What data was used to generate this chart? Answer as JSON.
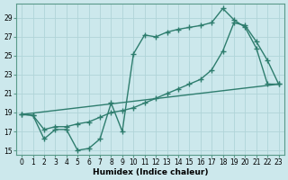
{
  "bg_color": "#cce8ec",
  "grid_color": "#b0d4d8",
  "line_color": "#2e7d6e",
  "line_width": 1.0,
  "marker": "+",
  "marker_size": 4.0,
  "xlim": [
    -0.5,
    23.5
  ],
  "ylim": [
    14.5,
    30.5
  ],
  "xlabel": "Humidex (Indice chaleur)",
  "xlabel_fontsize": 6.5,
  "xticks": [
    0,
    1,
    2,
    3,
    4,
    5,
    6,
    7,
    8,
    9,
    10,
    11,
    12,
    13,
    14,
    15,
    16,
    17,
    18,
    19,
    20,
    21,
    22,
    23
  ],
  "yticks": [
    15,
    17,
    19,
    21,
    23,
    25,
    27,
    29
  ],
  "tick_fontsize": 5.5,
  "series1_x": [
    0,
    1,
    2,
    3,
    4,
    5,
    6,
    7,
    8,
    9,
    10,
    11,
    12,
    13,
    14,
    15,
    16,
    17,
    18,
    19,
    20,
    21,
    22,
    23
  ],
  "series1_y": [
    18.8,
    18.7,
    16.2,
    17.2,
    17.2,
    15.0,
    15.2,
    16.2,
    20.0,
    17.0,
    25.2,
    27.2,
    27.0,
    27.5,
    27.8,
    28.0,
    28.2,
    28.5,
    30.0,
    28.8,
    28.0,
    25.8,
    22.0,
    22.0
  ],
  "series2_x": [
    0,
    23
  ],
  "series2_y": [
    18.8,
    22.0
  ],
  "series3_x": [
    0,
    1,
    2,
    3,
    4,
    5,
    6,
    7,
    8,
    9,
    10,
    11,
    12,
    13,
    14,
    15,
    16,
    17,
    18,
    19,
    20,
    21,
    22,
    23
  ],
  "series3_y": [
    18.8,
    18.7,
    17.2,
    17.5,
    17.5,
    17.8,
    18.0,
    18.5,
    19.0,
    19.2,
    19.5,
    20.0,
    20.5,
    21.0,
    21.5,
    22.0,
    22.5,
    23.5,
    25.5,
    28.5,
    28.2,
    26.5,
    24.5,
    22.0
  ]
}
